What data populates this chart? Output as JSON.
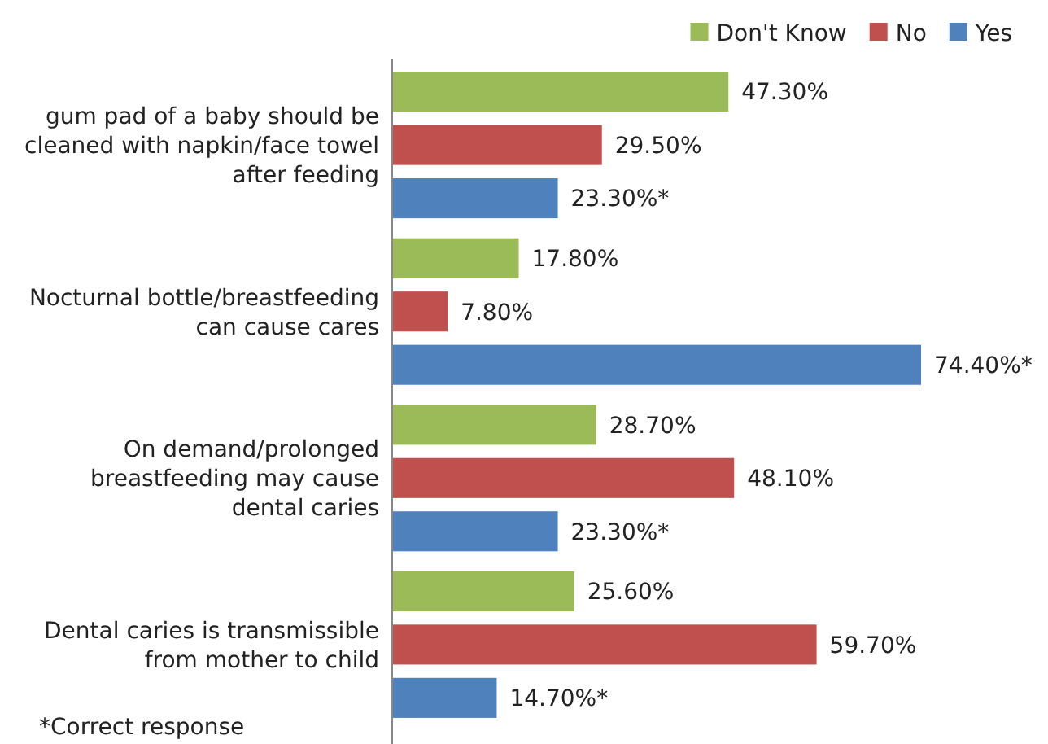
{
  "chart_data": {
    "type": "bar",
    "orientation": "horizontal",
    "categories": [
      "gum pad of a baby should be cleaned with napkin/face towel after feeding",
      "Nocturnal bottle/breastfeeding can cause cares",
      "On demand/prolonged breastfeeding may cause dental caries",
      "Dental caries is transmissible from mother to child"
    ],
    "series": [
      {
        "name": "Don't Know",
        "color": "#9bbb59",
        "values": [
          47.3,
          17.8,
          28.7,
          25.6
        ],
        "value_labels": [
          "47.30%",
          "17.80%",
          "28.70%",
          "25.60%"
        ]
      },
      {
        "name": "No",
        "color": "#c0504d",
        "values": [
          29.5,
          7.8,
          48.1,
          59.7
        ],
        "value_labels": [
          "29.50%",
          "7.80%",
          "48.10%",
          "59.70%"
        ]
      },
      {
        "name": "Yes",
        "color": "#4f81bd",
        "values": [
          23.3,
          74.4,
          23.3,
          14.7
        ],
        "value_labels": [
          "23.30%*",
          "74.40%*",
          "23.30%*",
          "14.70%*"
        ]
      }
    ],
    "legend": "top right",
    "annotations": [
      "*Correct response"
    ]
  }
}
